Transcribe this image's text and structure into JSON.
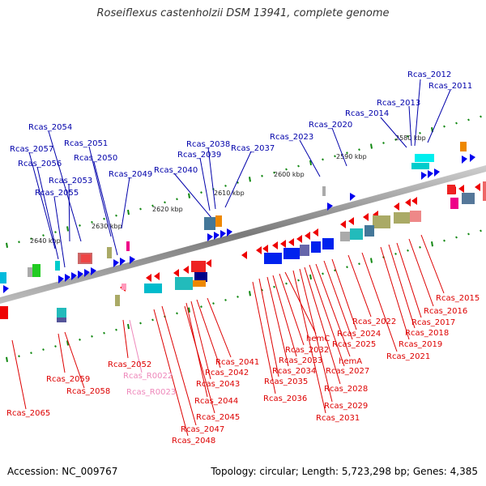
{
  "title": "Roseiflexus castenholzii DSM 13941, complete genome",
  "accession": "Accession: NC_009767",
  "topology": "Topology: circular; Length: 5,723,298 bp; Genes: 4,385",
  "colors": {
    "forward_label": "#0000aa",
    "reverse_label": "#dd0000",
    "rna_label": "#ee88bb",
    "backbone": "#888888",
    "scale_tick": "#118811",
    "forward_gene": "#0000ee",
    "reverse_gene": "#ee0000"
  },
  "kbp_labels": [
    "2580 kbp",
    "2590 kbp",
    "2600 kbp",
    "2610 kbp",
    "2620 kbp",
    "2630 kbp",
    "2640 kbp"
  ],
  "forward_labels": [
    "Rcas_2012",
    "Rcas_2011",
    "Rcas_2013",
    "Rcas_2014",
    "Rcas_2020",
    "Rcas_2023",
    "Rcas_2038",
    "Rcas_2039",
    "Rcas_2037",
    "Rcas_2040",
    "Rcas_2054",
    "Rcas_2051",
    "Rcas_2057",
    "Rcas_2050",
    "Rcas_2056",
    "Rcas_2049",
    "Rcas_2053",
    "Rcas_2055"
  ],
  "reverse_labels": [
    "Rcas_2015",
    "Rcas_2016",
    "Rcas_2017",
    "Rcas_2018",
    "Rcas_2019",
    "Rcas_2021",
    "Rcas_2022",
    "Rcas_2024",
    "Rcas_2025",
    "hemA",
    "Rcas_2027",
    "Rcas_2028",
    "Rcas_2029",
    "Rcas_2031",
    "hemC",
    "Rcas_2032",
    "Rcas_2033",
    "Rcas_2034",
    "Rcas_2035",
    "Rcas_2036",
    "Rcas_2041",
    "Rcas_2042",
    "Rcas_2043",
    "Rcas_2044",
    "Rcas_2045",
    "Rcas_2047",
    "Rcas_2048",
    "Rcas_2052",
    "Rcas_2059",
    "Rcas_2058",
    "Rcas_2065"
  ],
  "rna_labels": [
    "Rcas_R0022",
    "Rcas_R0023"
  ]
}
